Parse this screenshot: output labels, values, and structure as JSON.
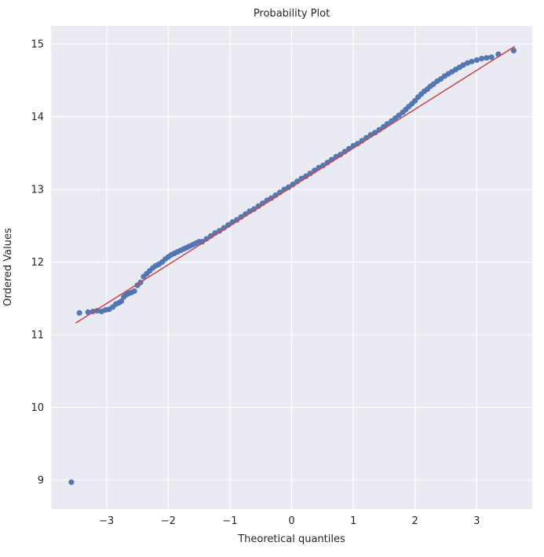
{
  "chart_data": {
    "type": "scatter",
    "title": "Probability Plot",
    "xlabel": "Theoretical quantiles",
    "ylabel": "Ordered Values",
    "xlim": [
      -3.9,
      3.9
    ],
    "ylim": [
      8.6,
      15.25
    ],
    "x_ticks": [
      -3,
      -2,
      -1,
      0,
      1,
      2,
      3
    ],
    "y_ticks": [
      9,
      10,
      11,
      12,
      13,
      14,
      15
    ],
    "grid": true,
    "legend": false,
    "background": "#eaeaf2",
    "grid_color": "#ffffff",
    "point_color": "#4c72b0",
    "line_color": "#c44e52",
    "fit_line": {
      "x1": -3.5,
      "y1": 11.16,
      "x2": 3.62,
      "y2": 14.97
    },
    "points": [
      [
        -3.57,
        8.97
      ],
      [
        -3.44,
        11.3
      ],
      [
        -3.3,
        11.31
      ],
      [
        -3.22,
        11.32
      ],
      [
        -3.15,
        11.33
      ],
      [
        -3.08,
        11.32
      ],
      [
        -3.02,
        11.34
      ],
      [
        -2.96,
        11.35
      ],
      [
        -2.9,
        11.38
      ],
      [
        -2.85,
        11.42
      ],
      [
        -2.8,
        11.44
      ],
      [
        -2.76,
        11.46
      ],
      [
        -2.72,
        11.52
      ],
      [
        -2.68,
        11.55
      ],
      [
        -2.64,
        11.57
      ],
      [
        -2.6,
        11.58
      ],
      [
        -2.55,
        11.6
      ],
      [
        -2.5,
        11.68
      ],
      [
        -2.45,
        11.72
      ],
      [
        -2.4,
        11.8
      ],
      [
        -2.35,
        11.84
      ],
      [
        -2.3,
        11.88
      ],
      [
        -2.25,
        11.92
      ],
      [
        -2.2,
        11.95
      ],
      [
        -2.15,
        11.97
      ],
      [
        -2.1,
        12.0
      ],
      [
        -2.05,
        12.04
      ],
      [
        -2.0,
        12.07
      ],
      [
        -1.95,
        12.1
      ],
      [
        -1.9,
        12.12
      ],
      [
        -1.85,
        12.14
      ],
      [
        -1.8,
        12.16
      ],
      [
        -1.75,
        12.18
      ],
      [
        -1.7,
        12.2
      ],
      [
        -1.65,
        12.22
      ],
      [
        -1.6,
        12.24
      ],
      [
        -1.55,
        12.26
      ],
      [
        -1.5,
        12.28
      ],
      [
        -1.45,
        12.28
      ],
      [
        -1.38,
        12.32
      ],
      [
        -1.31,
        12.36
      ],
      [
        -1.24,
        12.4
      ],
      [
        -1.17,
        12.43
      ],
      [
        -1.1,
        12.47
      ],
      [
        -1.03,
        12.51
      ],
      [
        -0.96,
        12.55
      ],
      [
        -0.89,
        12.58
      ],
      [
        -0.82,
        12.62
      ],
      [
        -0.75,
        12.66
      ],
      [
        -0.68,
        12.7
      ],
      [
        -0.61,
        12.73
      ],
      [
        -0.54,
        12.77
      ],
      [
        -0.47,
        12.81
      ],
      [
        -0.4,
        12.85
      ],
      [
        -0.33,
        12.88
      ],
      [
        -0.26,
        12.92
      ],
      [
        -0.19,
        12.96
      ],
      [
        -0.12,
        13.0
      ],
      [
        -0.05,
        13.03
      ],
      [
        0.02,
        13.07
      ],
      [
        0.09,
        13.11
      ],
      [
        0.16,
        13.15
      ],
      [
        0.23,
        13.18
      ],
      [
        0.3,
        13.22
      ],
      [
        0.37,
        13.26
      ],
      [
        0.44,
        13.3
      ],
      [
        0.51,
        13.33
      ],
      [
        0.58,
        13.37
      ],
      [
        0.65,
        13.41
      ],
      [
        0.72,
        13.45
      ],
      [
        0.79,
        13.48
      ],
      [
        0.86,
        13.52
      ],
      [
        0.93,
        13.56
      ],
      [
        1.0,
        13.6
      ],
      [
        1.07,
        13.63
      ],
      [
        1.14,
        13.67
      ],
      [
        1.21,
        13.71
      ],
      [
        1.28,
        13.75
      ],
      [
        1.35,
        13.78
      ],
      [
        1.42,
        13.82
      ],
      [
        1.49,
        13.86
      ],
      [
        1.55,
        13.9
      ],
      [
        1.62,
        13.94
      ],
      [
        1.68,
        13.98
      ],
      [
        1.74,
        14.02
      ],
      [
        1.8,
        14.06
      ],
      [
        1.85,
        14.1
      ],
      [
        1.9,
        14.14
      ],
      [
        1.95,
        14.18
      ],
      [
        2.0,
        14.22
      ],
      [
        2.05,
        14.27
      ],
      [
        2.1,
        14.31
      ],
      [
        2.15,
        14.35
      ],
      [
        2.2,
        14.38
      ],
      [
        2.25,
        14.42
      ],
      [
        2.3,
        14.45
      ],
      [
        2.36,
        14.49
      ],
      [
        2.42,
        14.52
      ],
      [
        2.48,
        14.56
      ],
      [
        2.54,
        14.59
      ],
      [
        2.6,
        14.62
      ],
      [
        2.66,
        14.65
      ],
      [
        2.72,
        14.68
      ],
      [
        2.78,
        14.71
      ],
      [
        2.85,
        14.74
      ],
      [
        2.92,
        14.76
      ],
      [
        3.0,
        14.78
      ],
      [
        3.08,
        14.8
      ],
      [
        3.16,
        14.81
      ],
      [
        3.24,
        14.82
      ],
      [
        3.35,
        14.86
      ],
      [
        3.6,
        14.91
      ]
    ]
  }
}
